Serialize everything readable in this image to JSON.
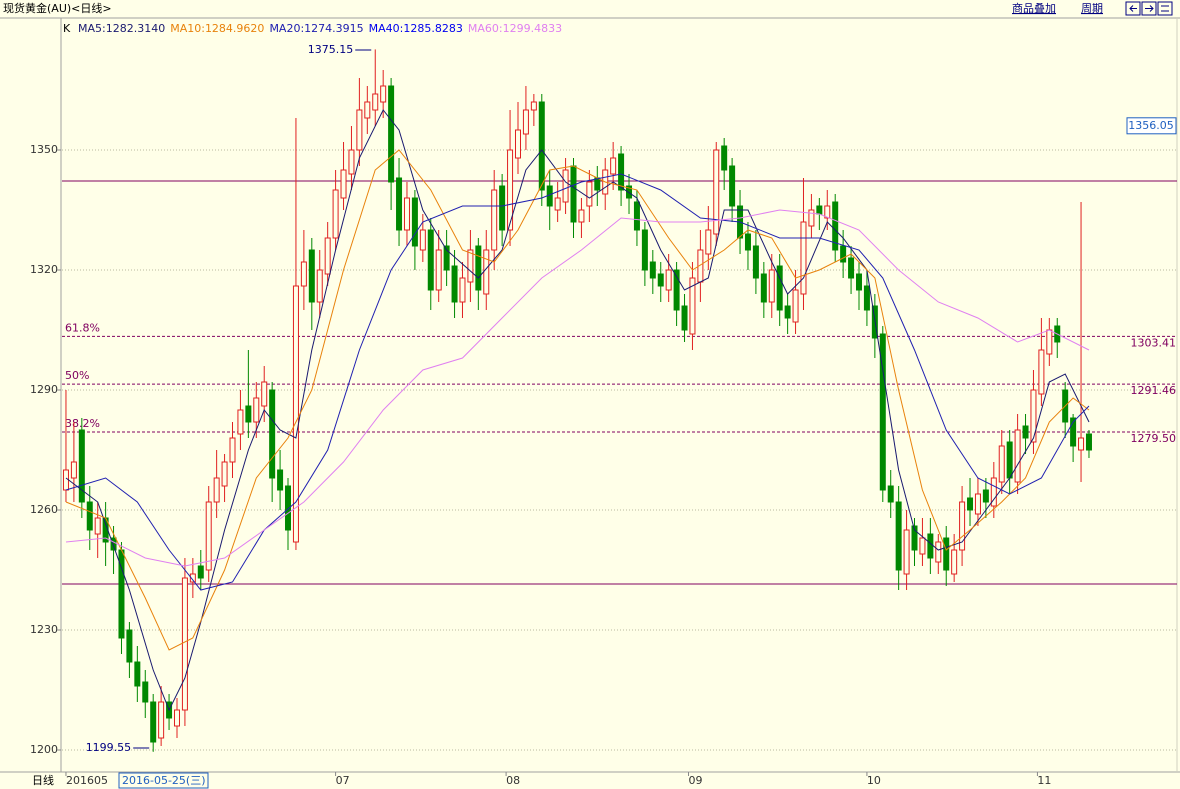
{
  "header": {
    "title": "现货黄金(AU)<日线>",
    "links": [
      "商品叠加",
      "周期"
    ],
    "k_label": "K",
    "period_label": "日线",
    "cursor_date": "2016-05-25(三)"
  },
  "chart_data": {
    "type": "candlestick",
    "up_color": "#e02020",
    "down_color": "#008800",
    "ylim": [
      1194.5,
      1383
    ],
    "yticks": [
      1200,
      1230,
      1260,
      1290,
      1320,
      1350
    ],
    "grid": true,
    "xlim": [
      -0.5,
      140.1
    ],
    "xticks": [
      {
        "value": 0,
        "label": "201605"
      },
      {
        "value": 34,
        "label": "07"
      },
      {
        "value": 55.5,
        "label": "08"
      },
      {
        "value": 78.5,
        "label": "09"
      },
      {
        "value": 101,
        "label": "10"
      },
      {
        "value": 122.5,
        "label": "11"
      }
    ],
    "open": [
      1265,
      1268,
      1280,
      1262,
      1254,
      1258,
      1253,
      1250,
      1230,
      1222,
      1217,
      1212,
      1203,
      1212,
      1206,
      1210,
      1242,
      1246,
      1245,
      1262,
      1266,
      1272,
      1279,
      1286,
      1282,
      1286,
      1290,
      1270,
      1266,
      1252,
      1316,
      1325,
      1312,
      1319,
      1328,
      1338,
      1344,
      1350,
      1358,
      1360,
      1362,
      1366,
      1343,
      1330,
      1338,
      1325,
      1330,
      1315,
      1326,
      1321,
      1312,
      1317,
      1326,
      1314,
      1325,
      1341,
      1330,
      1348,
      1354,
      1360,
      1362,
      1341,
      1335,
      1337,
      1346,
      1332,
      1336,
      1343,
      1339,
      1344,
      1349,
      1341,
      1337,
      1330,
      1322,
      1319,
      1315,
      1320,
      1311,
      1304,
      1317,
      1324,
      1329,
      1351,
      1346,
      1336,
      1329,
      1326,
      1319,
      1312,
      1321,
      1311,
      1307,
      1314,
      1331,
      1336,
      1333,
      1337,
      1326,
      1323,
      1319,
      1316,
      1311,
      1304,
      1266,
      1262,
      1244,
      1256,
      1249,
      1254,
      1247,
      1253,
      1244,
      1250,
      1263,
      1259,
      1265,
      1261,
      1267,
      1277,
      1267,
      1281,
      1277,
      1289,
      1299,
      1306,
      1290,
      1283,
      1275,
      1279
    ],
    "high": [
      1290,
      1282,
      1283,
      1266,
      1262,
      1262,
      1256,
      1252,
      1232,
      1226,
      1220,
      1214,
      1216,
      1214,
      1213,
      1248,
      1248,
      1250,
      1266,
      1275,
      1274,
      1282,
      1290,
      1300,
      1292,
      1296,
      1292,
      1275,
      1268,
      1358,
      1330,
      1328,
      1325,
      1332,
      1345,
      1352,
      1356,
      1368,
      1366,
      1375.15,
      1370,
      1368,
      1348,
      1342,
      1340,
      1334,
      1333,
      1330,
      1330,
      1325,
      1322,
      1330,
      1328,
      1330,
      1345,
      1344,
      1360,
      1362,
      1366,
      1364,
      1364,
      1345,
      1342,
      1348,
      1348,
      1338,
      1345,
      1346,
      1348,
      1352,
      1351,
      1344,
      1340,
      1332,
      1325,
      1322,
      1324,
      1322,
      1314,
      1322,
      1330,
      1336,
      1352,
      1353,
      1348,
      1340,
      1332,
      1330,
      1322,
      1324,
      1324,
      1314,
      1320,
      1343,
      1339,
      1338,
      1340,
      1339,
      1330,
      1326,
      1322,
      1320,
      1314,
      1306,
      1270,
      1266,
      1260,
      1258,
      1258,
      1258,
      1254,
      1256,
      1254,
      1266,
      1268,
      1268,
      1268,
      1272,
      1280,
      1280,
      1284,
      1284,
      1295,
      1308,
      1308,
      1308,
      1292,
      1284,
      1337,
      1280
    ],
    "low": [
      1262,
      1262,
      1258,
      1250,
      1248,
      1246,
      1244,
      1224,
      1218,
      1212,
      1208,
      1199.55,
      1201,
      1205,
      1203,
      1206,
      1238,
      1240,
      1242,
      1258,
      1262,
      1268,
      1275,
      1278,
      1278,
      1282,
      1262,
      1260,
      1250,
      1250,
      1310,
      1305,
      1308,
      1316,
      1325,
      1335,
      1340,
      1346,
      1354,
      1356,
      1358,
      1335,
      1326,
      1326,
      1320,
      1322,
      1310,
      1312,
      1316,
      1308,
      1308,
      1312,
      1310,
      1310,
      1320,
      1326,
      1326,
      1344,
      1350,
      1356,
      1336,
      1330,
      1332,
      1334,
      1328,
      1328,
      1332,
      1336,
      1335,
      1340,
      1336,
      1334,
      1326,
      1316,
      1314,
      1312,
      1312,
      1306,
      1302,
      1300,
      1312,
      1320,
      1326,
      1340,
      1332,
      1324,
      1320,
      1314,
      1308,
      1308,
      1306,
      1304,
      1304,
      1310,
      1328,
      1330,
      1330,
      1322,
      1318,
      1314,
      1310,
      1306,
      1298,
      1262,
      1258,
      1240,
      1240,
      1246,
      1246,
      1244,
      1244,
      1241,
      1242,
      1246,
      1256,
      1256,
      1258,
      1258,
      1264,
      1264,
      1264,
      1274,
      1274,
      1286,
      1296,
      1298,
      1278,
      1272,
      1267,
      1273
    ],
    "close": [
      1270,
      1272,
      1262,
      1255,
      1258,
      1252,
      1250,
      1228,
      1222,
      1216,
      1212,
      1202,
      1212,
      1208,
      1210,
      1243,
      1244,
      1243,
      1262,
      1268,
      1272,
      1278,
      1285,
      1282,
      1288,
      1292,
      1268,
      1265,
      1255,
      1316,
      1322,
      1312,
      1320,
      1328,
      1340,
      1345,
      1350,
      1360,
      1362,
      1364,
      1366,
      1342,
      1330,
      1338,
      1326,
      1330,
      1315,
      1325,
      1320,
      1312,
      1318,
      1325,
      1315,
      1325,
      1340,
      1330,
      1350,
      1355,
      1360,
      1362,
      1340,
      1336,
      1338,
      1345,
      1332,
      1335,
      1342,
      1340,
      1345,
      1348,
      1340,
      1338,
      1330,
      1320,
      1318,
      1316,
      1320,
      1310,
      1305,
      1318,
      1325,
      1330,
      1350,
      1345,
      1336,
      1328,
      1325,
      1318,
      1312,
      1320,
      1310,
      1308,
      1315,
      1332,
      1335,
      1334,
      1336,
      1325,
      1322,
      1318,
      1315,
      1310,
      1303,
      1265,
      1262,
      1245,
      1255,
      1250,
      1253,
      1248,
      1252,
      1245,
      1250,
      1262,
      1260,
      1264,
      1262,
      1268,
      1276,
      1268,
      1280,
      1278,
      1290,
      1300,
      1305,
      1302,
      1282,
      1276,
      1278,
      1275
    ],
    "ma_lines": [
      {
        "label": "MA5:1282.3140",
        "color": "#1a1a70",
        "x": [
          0,
          4,
          8,
          11,
          13,
          15,
          17,
          20,
          23,
          25,
          27,
          29,
          31,
          34,
          37,
          40,
          42,
          45,
          48,
          52,
          55,
          58,
          60,
          63,
          66,
          69,
          72,
          75,
          78,
          81,
          83,
          86,
          89,
          91,
          93,
          96,
          98,
          101,
          103,
          105,
          107,
          110,
          113,
          116,
          119,
          122,
          124,
          126,
          129
        ],
        "values": [
          1268,
          1262,
          1240,
          1220,
          1210,
          1218,
          1232,
          1255,
          1275,
          1285,
          1280,
          1278,
          1300,
          1325,
          1348,
          1360,
          1355,
          1335,
          1325,
          1318,
          1325,
          1345,
          1350,
          1342,
          1338,
          1342,
          1338,
          1325,
          1315,
          1318,
          1335,
          1335,
          1322,
          1314,
          1318,
          1332,
          1328,
          1320,
          1295,
          1270,
          1255,
          1250,
          1252,
          1260,
          1268,
          1278,
          1292,
          1294,
          1282
        ]
      },
      {
        "label": "MA10:1284.9620",
        "color": "#e8820c",
        "x": [
          0,
          5,
          10,
          13,
          16,
          20,
          24,
          28,
          31,
          35,
          39,
          42,
          46,
          50,
          54,
          57,
          61,
          64,
          68,
          72,
          76,
          79,
          83,
          86,
          89,
          92,
          95,
          99,
          102,
          105,
          108,
          111,
          114,
          118,
          121,
          124,
          127,
          129
        ],
        "values": [
          1262,
          1258,
          1238,
          1225,
          1228,
          1245,
          1268,
          1278,
          1290,
          1320,
          1345,
          1350,
          1340,
          1325,
          1322,
          1330,
          1345,
          1346,
          1342,
          1340,
          1328,
          1320,
          1325,
          1330,
          1328,
          1318,
          1320,
          1324,
          1318,
          1290,
          1265,
          1250,
          1255,
          1262,
          1268,
          1282,
          1288,
          1285
        ]
      },
      {
        "label": "MA20:1274.3915",
        "color": "#2020b0",
        "x": [
          0,
          5,
          9,
          13,
          17,
          21,
          25,
          29,
          33,
          37,
          41,
          45,
          50,
          55,
          60,
          65,
          70,
          75,
          80,
          85,
          90,
          95,
          100,
          103,
          107,
          111,
          115,
          119,
          123,
          127,
          129
        ],
        "values": [
          1265,
          1268,
          1262,
          1250,
          1240,
          1242,
          1255,
          1262,
          1275,
          1300,
          1320,
          1332,
          1336,
          1336,
          1338,
          1342,
          1344,
          1340,
          1333,
          1332,
          1328,
          1328,
          1325,
          1318,
          1300,
          1280,
          1268,
          1264,
          1268,
          1282,
          1286
        ]
      },
      {
        "label": "MA40:1285.8283",
        "color": "#0000ee"
      },
      {
        "label": "MA60:1299.4833",
        "color": "#e080f0",
        "x": [
          0,
          5,
          10,
          15,
          20,
          25,
          30,
          35,
          40,
          45,
          50,
          55,
          60,
          65,
          70,
          75,
          80,
          85,
          90,
          95,
          100,
          105,
          110,
          115,
          120,
          124,
          129
        ],
        "values": [
          1252,
          1253,
          1248,
          1246,
          1248,
          1255,
          1262,
          1272,
          1285,
          1295,
          1298,
          1308,
          1318,
          1325,
          1333,
          1332,
          1332,
          1333,
          1335,
          1334,
          1330,
          1320,
          1312,
          1308,
          1302,
          1305,
          1300
        ]
      }
    ],
    "hlines": [
      1342.25,
      1241.5
    ],
    "levels": [
      {
        "pct": "61.8%",
        "value": 1303.41
      },
      {
        "pct": "50%",
        "value": 1291.46
      },
      {
        "pct": "38.2%",
        "value": 1279.5,
        "label": "1279.50"
      }
    ],
    "last_price": 1356.05
  }
}
